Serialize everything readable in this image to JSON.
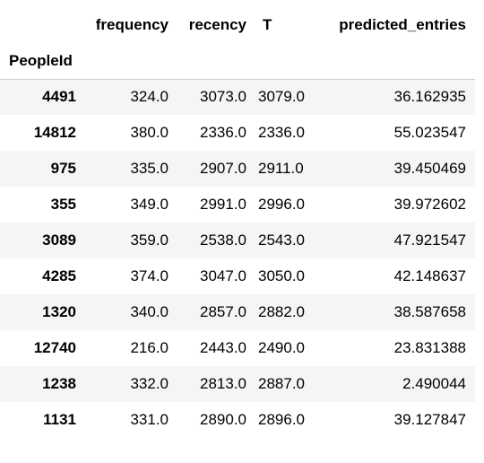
{
  "dataframe": {
    "index_name": "PeopleId",
    "columns": [
      "frequency",
      "recency",
      "T",
      "predicted_entries"
    ],
    "rows": [
      {
        "index": "4491",
        "frequency": "324.0",
        "recency": "3073.0",
        "T": "3079.0",
        "predicted_entries": "36.162935"
      },
      {
        "index": "14812",
        "frequency": "380.0",
        "recency": "2336.0",
        "T": "2336.0",
        "predicted_entries": "55.023547"
      },
      {
        "index": "975",
        "frequency": "335.0",
        "recency": "2907.0",
        "T": "2911.0",
        "predicted_entries": "39.450469"
      },
      {
        "index": "355",
        "frequency": "349.0",
        "recency": "2991.0",
        "T": "2996.0",
        "predicted_entries": "39.972602"
      },
      {
        "index": "3089",
        "frequency": "359.0",
        "recency": "2538.0",
        "T": "2543.0",
        "predicted_entries": "47.921547"
      },
      {
        "index": "4285",
        "frequency": "374.0",
        "recency": "3047.0",
        "T": "3050.0",
        "predicted_entries": "42.148637"
      },
      {
        "index": "1320",
        "frequency": "340.0",
        "recency": "2857.0",
        "T": "2882.0",
        "predicted_entries": "38.587658"
      },
      {
        "index": "12740",
        "frequency": "216.0",
        "recency": "2443.0",
        "T": "2490.0",
        "predicted_entries": "23.831388"
      },
      {
        "index": "1238",
        "frequency": "332.0",
        "recency": "2813.0",
        "T": "2887.0",
        "predicted_entries": "2.490044"
      },
      {
        "index": "1131",
        "frequency": "331.0",
        "recency": "2890.0",
        "T": "2896.0",
        "predicted_entries": "39.127847"
      }
    ]
  }
}
